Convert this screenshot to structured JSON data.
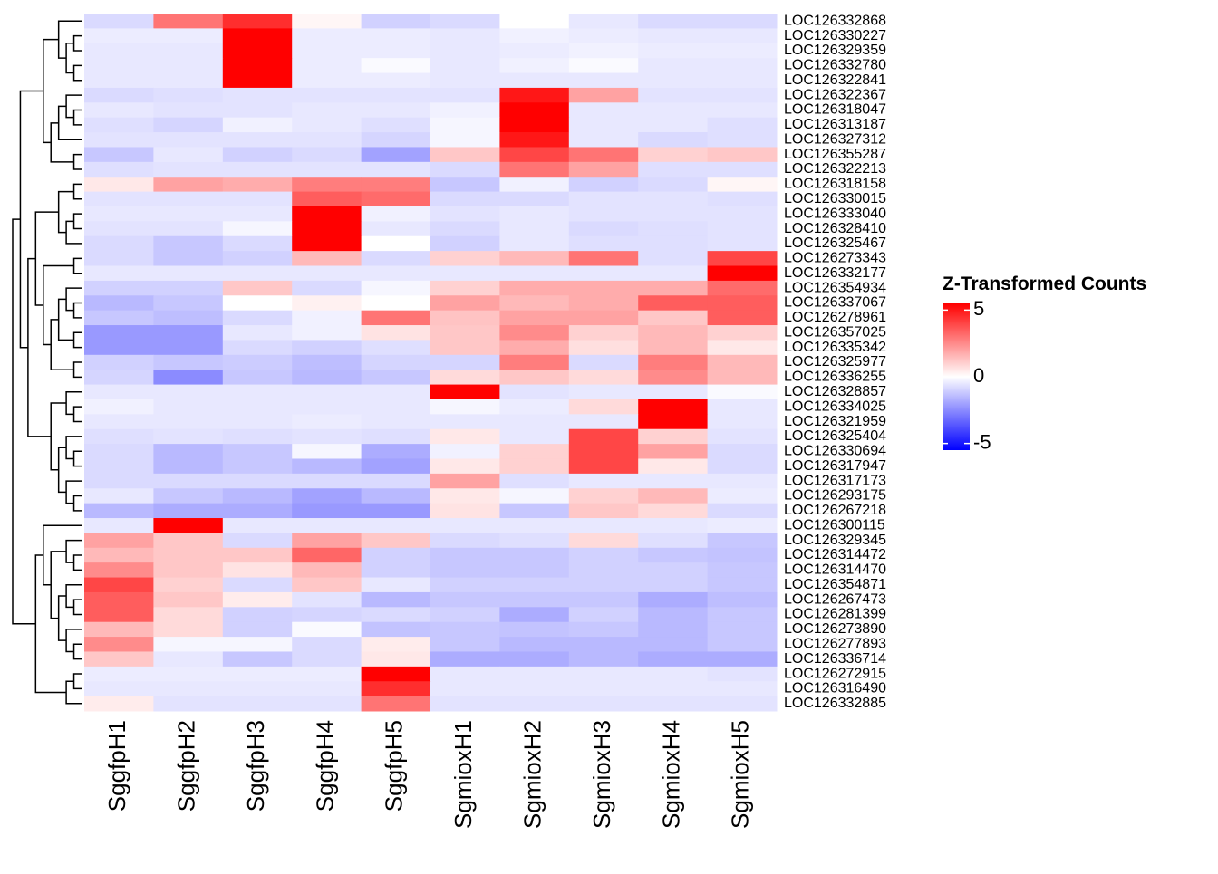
{
  "chart_data": {
    "type": "heatmap",
    "legend_title": "Z-Transformed Counts",
    "columns": [
      "SggfpH1",
      "SggfpH2",
      "SggfpH3",
      "SggfpH4",
      "SggfpH5",
      "SgmioxH1",
      "SgmioxH2",
      "SgmioxH3",
      "SgmioxH4",
      "SgmioxH5"
    ],
    "rows": [
      "LOC126332868",
      "LOC126330227",
      "LOC126329359",
      "LOC126332780",
      "LOC126322841",
      "LOC126322367",
      "LOC126318047",
      "LOC126313187",
      "LOC126327312",
      "LOC126355287",
      "LOC126322213",
      "LOC126318158",
      "LOC126330015",
      "LOC126333040",
      "LOC126328410",
      "LOC126325467",
      "LOC126273343",
      "LOC126332177",
      "LOC126354934",
      "LOC126337067",
      "LOC126278961",
      "LOC126357025",
      "LOC126335342",
      "LOC126325977",
      "LOC126336255",
      "LOC126328857",
      "LOC126334025",
      "LOC126321959",
      "LOC126325404",
      "LOC126330694",
      "LOC126317947",
      "LOC126317173",
      "LOC126293175",
      "LOC126267218",
      "LOC126300115",
      "LOC126329345",
      "LOC126314472",
      "LOC126314470",
      "LOC126354871",
      "LOC126267473",
      "LOC126281399",
      "LOC126273890",
      "LOC126277893",
      "LOC126336714",
      "LOC126272915",
      "LOC126316490",
      "LOC126332885"
    ],
    "values": [
      [
        -0.8,
        3,
        4.5,
        0.2,
        -1,
        -0.8,
        0,
        -0.5,
        -0.8,
        -0.8
      ],
      [
        -0.4,
        -0.4,
        5.5,
        -0.4,
        -0.4,
        -0.5,
        -0.3,
        -0.4,
        -0.5,
        -0.5
      ],
      [
        -0.5,
        -0.5,
        5.5,
        -0.4,
        -0.4,
        -0.5,
        -0.4,
        -0.3,
        -0.4,
        -0.4
      ],
      [
        -0.5,
        -0.5,
        5.5,
        -0.4,
        -0.1,
        -0.5,
        -0.3,
        -0.1,
        -0.5,
        -0.5
      ],
      [
        -0.5,
        -0.5,
        5.5,
        -0.4,
        -0.4,
        -0.5,
        -0.5,
        -0.5,
        -0.5,
        -0.5
      ],
      [
        -0.8,
        -0.7,
        -0.6,
        -0.6,
        -0.6,
        -0.6,
        5,
        2,
        -0.6,
        -0.6
      ],
      [
        -0.5,
        -0.6,
        -0.6,
        -0.5,
        -0.5,
        -0.3,
        5.5,
        -0.5,
        -0.5,
        -0.5
      ],
      [
        -0.7,
        -0.9,
        -0.3,
        -0.5,
        -0.7,
        -0.2,
        5.5,
        -0.5,
        -0.5,
        -0.7
      ],
      [
        -0.6,
        -0.6,
        -0.6,
        -0.6,
        -0.9,
        -0.2,
        5,
        -0.5,
        -0.8,
        -0.7
      ],
      [
        -1.2,
        -0.5,
        -1,
        -0.8,
        -2,
        1.2,
        4,
        3,
        1,
        1.2
      ],
      [
        -0.7,
        -0.6,
        -0.6,
        -0.6,
        -0.6,
        -0.8,
        3,
        2,
        -0.7,
        -0.7
      ],
      [
        0.5,
        2,
        1.8,
        2.8,
        2.8,
        -1.2,
        -0.3,
        -1,
        -0.8,
        0.2
      ],
      [
        -0.6,
        -0.6,
        -0.6,
        3.5,
        3.2,
        -0.8,
        -0.8,
        -0.6,
        -0.6,
        -0.7
      ],
      [
        -0.5,
        -0.5,
        -0.5,
        5.5,
        -0.3,
        -0.6,
        -0.5,
        -0.6,
        -0.6,
        -0.6
      ],
      [
        -0.6,
        -0.6,
        -0.2,
        5.5,
        -0.5,
        -0.8,
        -0.5,
        -0.8,
        -0.7,
        -0.6
      ],
      [
        -0.8,
        -1.2,
        -0.8,
        5.5,
        0,
        -1,
        -0.5,
        -0.7,
        -0.7,
        -0.6
      ],
      [
        -0.8,
        -1.2,
        -1,
        1.5,
        -0.8,
        1,
        1.5,
        3,
        -0.7,
        4
      ],
      [
        -0.5,
        -0.5,
        -0.5,
        -0.5,
        -0.5,
        -0.5,
        -0.5,
        -0.5,
        -0.5,
        5.5
      ],
      [
        -1,
        -1,
        1.2,
        -0.8,
        -0.2,
        1,
        1.8,
        1.8,
        1.8,
        3.2
      ],
      [
        -1.5,
        -1.2,
        0,
        0.3,
        0,
        2,
        1.5,
        1.8,
        3.5,
        3.5
      ],
      [
        -1.2,
        -1.4,
        -0.8,
        -0.3,
        3,
        1.3,
        2,
        2,
        1.2,
        3.5
      ],
      [
        -2.2,
        -2.2,
        -0.5,
        -0.3,
        0.6,
        1.2,
        2.5,
        1,
        1.5,
        1
      ],
      [
        -2.2,
        -2.2,
        -0.8,
        -1,
        -0.7,
        1.2,
        1.8,
        0.7,
        1.5,
        0.5
      ],
      [
        -1,
        -1.2,
        -1.1,
        -1.4,
        -0.9,
        -0.9,
        2.8,
        -0.8,
        2.8,
        1.5
      ],
      [
        -0.9,
        -2.5,
        -1.2,
        -1.5,
        -1.2,
        0.8,
        1.2,
        0.8,
        2.5,
        1.5
      ],
      [
        -0.5,
        -0.5,
        -0.5,
        -0.5,
        -0.5,
        5.5,
        -0.6,
        -0.5,
        -0.5,
        -0.1
      ],
      [
        -0.3,
        -0.5,
        -0.5,
        -0.5,
        -0.5,
        -0.2,
        -0.4,
        0.8,
        5.5,
        -0.5
      ],
      [
        -0.5,
        -0.5,
        -0.5,
        -0.4,
        -0.5,
        -0.5,
        -0.5,
        -0.5,
        5.5,
        -0.5
      ],
      [
        -0.7,
        -0.6,
        -0.7,
        -0.6,
        -0.7,
        0.5,
        -0.5,
        4,
        1,
        -0.6
      ],
      [
        -0.8,
        -1.5,
        -1.2,
        -0.2,
        -1.8,
        -0.3,
        1,
        4,
        2,
        -0.8
      ],
      [
        -0.8,
        -1.5,
        -1.2,
        -1.5,
        -2,
        0.5,
        1,
        4,
        0.5,
        -0.8
      ],
      [
        -0.8,
        -0.8,
        -0.8,
        -0.8,
        -0.8,
        2,
        -0.7,
        -0.5,
        -0.5,
        -0.5
      ],
      [
        -0.5,
        -1.2,
        -1.5,
        -2,
        -1.5,
        0.5,
        -0.2,
        1,
        1.5,
        -0.4
      ],
      [
        -1.5,
        -1.8,
        -1.8,
        -2.2,
        -2.2,
        0.6,
        -1.2,
        1.2,
        0.8,
        -0.8
      ],
      [
        -0.5,
        5.5,
        -0.5,
        -0.5,
        -0.5,
        -0.5,
        -0.5,
        -0.5,
        -0.5,
        -0.4
      ],
      [
        2,
        1.2,
        -0.8,
        2,
        1.2,
        -0.8,
        -0.7,
        0.8,
        -0.7,
        -1.2
      ],
      [
        1.5,
        1.2,
        1.2,
        3.3,
        -1,
        -1.2,
        -1.2,
        -1,
        -1.2,
        -1.3
      ],
      [
        2.5,
        1.2,
        0.6,
        1.5,
        -1,
        -1.2,
        -1.2,
        -1,
        -1,
        -1.2
      ],
      [
        4,
        1,
        -0.8,
        1.2,
        -0.5,
        -1,
        -1,
        -1,
        -1,
        -1.2
      ],
      [
        3.5,
        1.2,
        0.4,
        -0.6,
        -1.5,
        -1.2,
        -1.2,
        -1.2,
        -1.8,
        -1.4
      ],
      [
        3.5,
        0.8,
        -1,
        -0.9,
        -0.8,
        -1,
        -1.8,
        -1,
        -1.5,
        -1.2
      ],
      [
        1.5,
        0.8,
        -1,
        -0.1,
        -1.3,
        -1.2,
        -1.3,
        -1.2,
        -1.5,
        -1.2
      ],
      [
        2.5,
        -0.2,
        -0.2,
        -0.8,
        0.4,
        -1.2,
        -1.5,
        -1.5,
        -1.5,
        -1.2
      ],
      [
        1.2,
        -0.5,
        -1.2,
        -0.8,
        0.5,
        -1.8,
        -1.8,
        -1.5,
        -1.8,
        -1.8
      ],
      [
        -0.4,
        -0.4,
        -0.4,
        -0.4,
        5.5,
        -0.5,
        -0.5,
        -0.5,
        -0.5,
        -0.6
      ],
      [
        -0.5,
        -0.5,
        -0.5,
        -0.5,
        4.5,
        -0.5,
        -0.5,
        -0.5,
        -0.5,
        -0.5
      ],
      [
        0.4,
        -0.6,
        -0.6,
        -0.6,
        3,
        -0.6,
        -0.6,
        -0.6,
        -0.6,
        -0.6
      ]
    ],
    "zlim": [
      -5.5,
      5.5
    ],
    "zticks": [
      -5,
      0,
      5
    ],
    "colorscale": [
      "#0000ff",
      "#ffffff",
      "#ff0000"
    ]
  }
}
